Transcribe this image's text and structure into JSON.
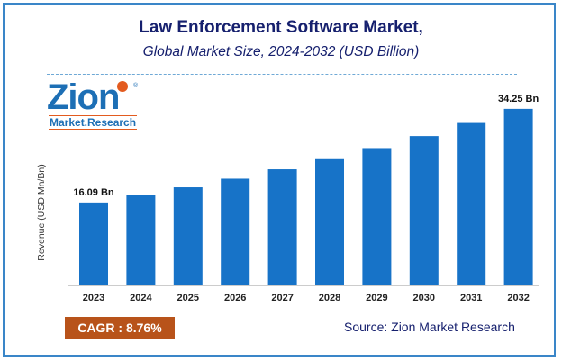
{
  "logo": {
    "word": "Zion",
    "sub": "Market.Research",
    "mark": "®"
  },
  "cagr_label": "CAGR : 8.76%",
  "source": "Source: Zion Market Research",
  "colors": {
    "bar": "#1773c8",
    "title": "#16206e",
    "border": "#3a86c8",
    "cagr_bg": "#b8531a"
  },
  "chart_data": {
    "type": "bar",
    "title": "Law Enforcement Software Market,",
    "subtitle": "Global Market Size, 2024-2032 (USD Billion)",
    "xlabel": "",
    "ylabel": "Revenue (USD Mn/Bn)",
    "categories": [
      "2023",
      "2024",
      "2025",
      "2026",
      "2027",
      "2028",
      "2029",
      "2030",
      "2031",
      "2032"
    ],
    "values": [
      16.09,
      17.5,
      19.03,
      20.7,
      22.52,
      24.49,
      26.64,
      28.97,
      31.51,
      34.25
    ],
    "data_labels": [
      {
        "index": 0,
        "text": "16.09 Bn"
      },
      {
        "index": 9,
        "text": "34.25 Bn"
      }
    ],
    "ylim": [
      0,
      36.5
    ],
    "grid": false,
    "legend": "none"
  }
}
